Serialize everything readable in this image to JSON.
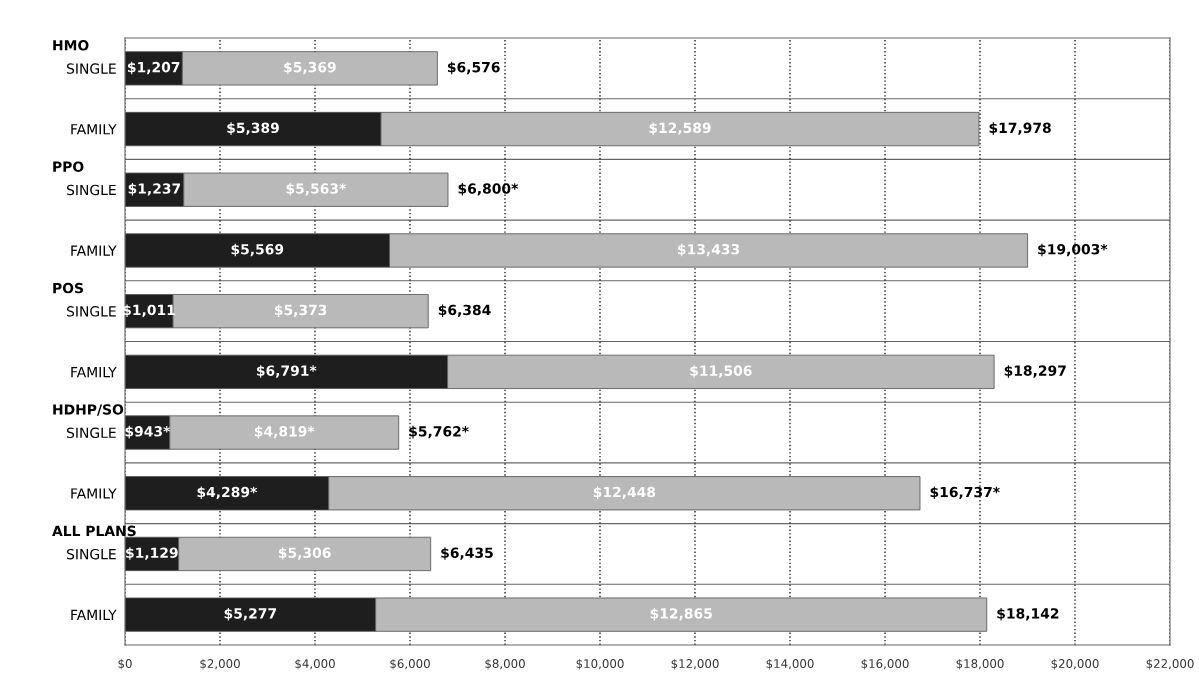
{
  "chart_data": {
    "type": "bar",
    "orientation": "horizontal",
    "stacked": true,
    "categories": [
      "SINGLE",
      "FAMILY",
      "SINGLE",
      "FAMILY",
      "SINGLE",
      "FAMILY",
      "SINGLE",
      "FAMILY",
      "SINGLE",
      "FAMILY"
    ],
    "annotations": [
      "HMO",
      "PPO",
      "POS",
      "HDHP/SO",
      "ALL PLANS"
    ],
    "series": [
      {
        "color": "#1e1e1e",
        "values": [
          1207,
          5389,
          1237,
          5569,
          1011,
          6791,
          943,
          4289,
          1129,
          5277
        ],
        "value_labels": [
          "$1,207",
          "$5,389",
          "$1,237",
          "$5,569",
          "$1,011",
          "$6,791*",
          "$943*",
          "$4,289*",
          "$1,129",
          "$5,277"
        ]
      },
      {
        "color": "#b9b9b9",
        "values": [
          5369,
          12589,
          5563,
          13433,
          5373,
          11506,
          4819,
          12448,
          5306,
          12865
        ],
        "value_labels": [
          "$5,369",
          "$12,589",
          "$5,563*",
          "$13,433",
          "$5,373",
          "$11,506",
          "$4,819*",
          "$12,448",
          "$5,306",
          "$12,865"
        ]
      }
    ],
    "totals": [
      "$6,576",
      "$17,978",
      "$6,800*",
      "$19,003*",
      "$6,384",
      "$18,297",
      "$5,762*",
      "$16,737*",
      "$6,435",
      "$18,142"
    ],
    "xlim": [
      0,
      22000
    ],
    "xticks": [
      {
        "value": 0,
        "label": "$0"
      },
      {
        "value": 2000,
        "label": "$2,000"
      },
      {
        "value": 4000,
        "label": "$4,000"
      },
      {
        "value": 6000,
        "label": "$6,000"
      },
      {
        "value": 8000,
        "label": "$8,000"
      },
      {
        "value": 10000,
        "label": "$10,000"
      },
      {
        "value": 12000,
        "label": "$12,000"
      },
      {
        "value": 14000,
        "label": "$14,000"
      },
      {
        "value": 16000,
        "label": "$16,000"
      },
      {
        "value": 18000,
        "label": "$18,000"
      },
      {
        "value": 20000,
        "label": "$20,000"
      },
      {
        "value": 22000,
        "label": "$22,000"
      }
    ],
    "grid": "x"
  }
}
